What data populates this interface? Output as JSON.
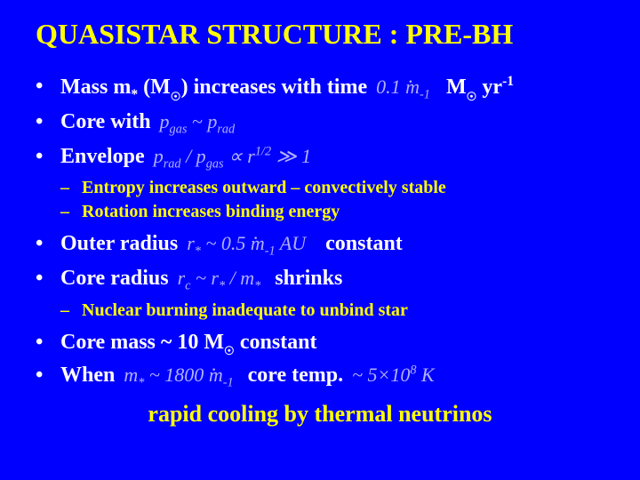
{
  "title": "QUASISTAR STRUCTURE : PRE-BH",
  "bullet1_a": "Mass m",
  "bullet1_b": " (M",
  "bullet1_c": ") increases with time",
  "bullet1_rate_lhs": "0.1",
  "bullet1_unit_M": "M",
  "bullet1_unit_yr": " yr",
  "bullet1_unit_exp": "-1",
  "bullet2": "Core with",
  "bullet2_math": "p_gas ~ p_rad",
  "bullet3": "Envelope",
  "bullet3_math": "p_rad / p_gas ∝ r^{1/2} ≫ 1",
  "sub1a": "Entropy increases outward – convectively stable",
  "sub1b": "Rotation increases binding energy",
  "bullet4": "Outer radius",
  "bullet4_math": "r_* ~ 0.5 ṁ_{-1} AU",
  "bullet4_tail": "constant",
  "bullet5": "Core radius",
  "bullet5_math": "r_c ~ r_* / m_*",
  "bullet5_tail": "shrinks",
  "sub2a": "Nuclear burning inadequate to unbind star",
  "bullet6_a": "Core mass ~ 10 M",
  "bullet6_b": " constant",
  "bullet7": "When",
  "bullet7_math": "m_* ~ 1800 ṁ_{-1}",
  "bullet7_mid": "core temp.",
  "bullet7_math2": "~ 5×10^8 K",
  "final": "rapid cooling by thermal neutrinos"
}
